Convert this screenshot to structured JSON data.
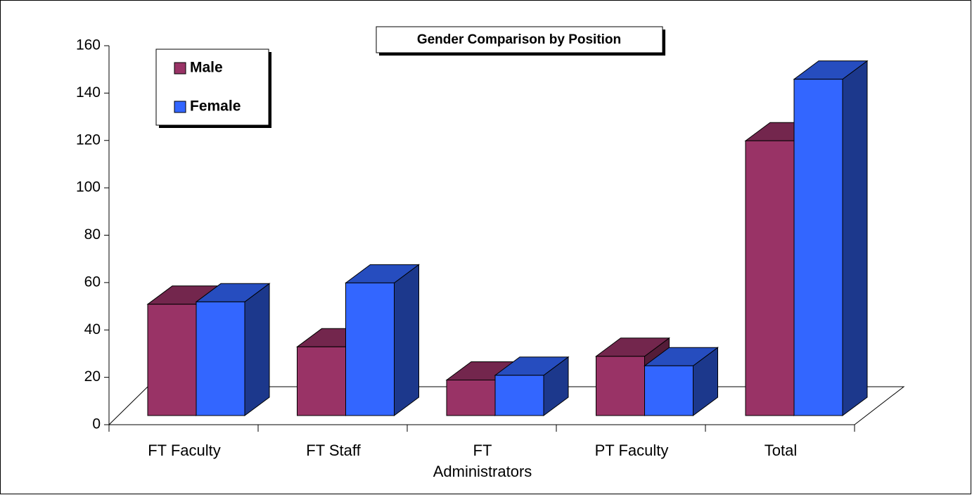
{
  "chart_data": {
    "type": "bar3d",
    "title": "Gender Comparison by Position",
    "categories": [
      "FT Faculty",
      "FT Staff",
      "FT Administrators",
      "PT Faculty",
      "Total"
    ],
    "series": [
      {
        "name": "Male",
        "color": "#993366",
        "values": [
          47,
          29,
          15,
          25,
          116
        ]
      },
      {
        "name": "Female",
        "color": "#3366ff",
        "values": [
          48,
          56,
          17,
          21,
          142
        ]
      }
    ],
    "ylim": [
      0,
      160
    ],
    "yticks": [
      0,
      20,
      40,
      60,
      80,
      100,
      120,
      140,
      160
    ],
    "legend": "top-left"
  }
}
